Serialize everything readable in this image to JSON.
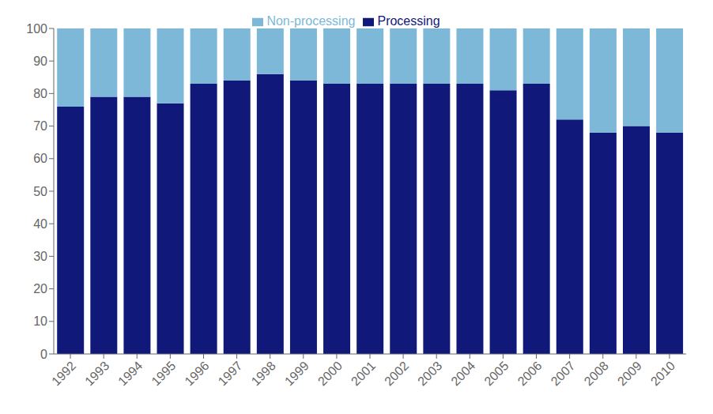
{
  "chart_data": {
    "type": "bar",
    "categories": [
      "1992",
      "1993",
      "1994",
      "1995",
      "1996",
      "1997",
      "1998",
      "1999",
      "2000",
      "2001",
      "2002",
      "2003",
      "2004",
      "2005",
      "2006",
      "2007",
      "2008",
      "2009",
      "2010"
    ],
    "series": [
      {
        "name": "Processing",
        "color": "#10197a",
        "values": [
          76,
          79,
          79,
          77,
          83,
          84,
          86,
          84,
          83,
          83,
          83,
          83,
          83,
          81,
          83,
          72,
          68,
          70,
          68
        ]
      },
      {
        "name": "Non-processing",
        "color": "#7db8d8",
        "values": [
          24,
          21,
          21,
          23,
          17,
          16,
          14,
          16,
          17,
          17,
          17,
          17,
          17,
          19,
          17,
          28,
          32,
          30,
          32
        ]
      }
    ],
    "ylim": [
      0,
      100
    ],
    "yticks": [
      0,
      10,
      20,
      30,
      40,
      50,
      60,
      70,
      80,
      90,
      100
    ],
    "grid": false,
    "legend": "top",
    "stacked": true
  }
}
